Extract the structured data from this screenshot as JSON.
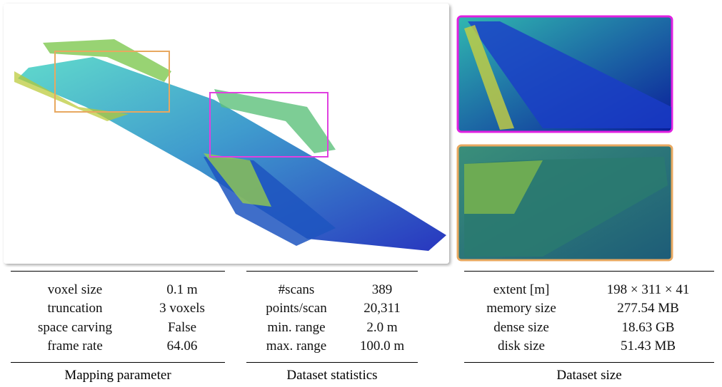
{
  "tables": [
    {
      "rows": [
        [
          "voxel size",
          "0.1 m"
        ],
        [
          "truncation",
          "3 voxels"
        ],
        [
          "space carving",
          "False"
        ],
        [
          "frame rate",
          "64.06"
        ]
      ],
      "caption": "Mapping parameter"
    },
    {
      "rows": [
        [
          "#scans",
          "389"
        ],
        [
          "points/scan",
          "20,311"
        ],
        [
          "min. range",
          "2.0 m"
        ],
        [
          "max. range",
          "100.0 m"
        ]
      ],
      "caption": "Dataset statistics"
    },
    {
      "rows": [
        [
          "extent [m]",
          "198 × 311 × 41"
        ],
        [
          "memory size",
          "277.54 MB"
        ],
        [
          "dense size",
          "18.63 GB"
        ],
        [
          "disk size",
          "51.43 MB"
        ]
      ],
      "caption": "Dataset size"
    }
  ]
}
